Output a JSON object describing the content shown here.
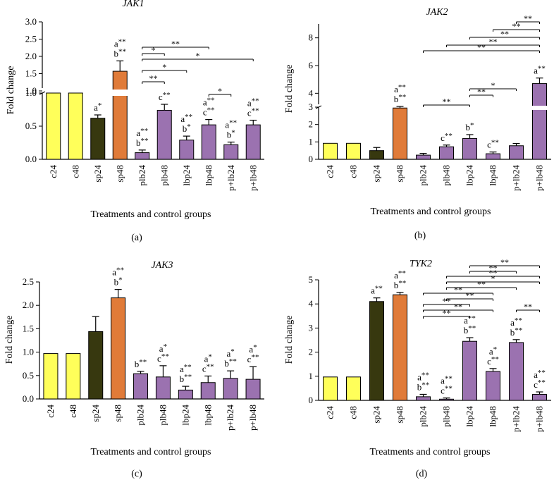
{
  "chart_data": [
    {
      "type": "bar",
      "panel_label": "(a)",
      "title": "JAK1",
      "xlabel": "Treatments and control groups",
      "ylabel": "Fold change",
      "y_break": {
        "lower": [
          0,
          1.0
        ],
        "upper": [
          1.0,
          3.0
        ]
      },
      "yticks_lower": [
        "0.0",
        "0.5",
        "1.0"
      ],
      "yticks_upper": [
        "1.0",
        "1.5",
        "2.0",
        "2.5",
        "3.0"
      ],
      "categories": [
        "c24",
        "c48",
        "sp24",
        "sp48",
        "plb24",
        "plb48",
        "lbp24",
        "lbp48",
        "p+lb24",
        "p+lb48"
      ],
      "values": [
        1.0,
        1.0,
        0.62,
        1.57,
        0.1,
        0.74,
        0.29,
        0.52,
        0.22,
        0.52
      ],
      "errors": [
        0,
        0,
        0.05,
        0.3,
        0.04,
        0.09,
        0.06,
        0.08,
        0.04,
        0.07
      ],
      "colors": [
        "#ffff5a",
        "#ffff5a",
        "#37380f",
        "#e07b39",
        "#9b72b0",
        "#9b72b0",
        "#9b72b0",
        "#9b72b0",
        "#9b72b0",
        "#9b72b0"
      ],
      "annotations": [
        "",
        "",
        "a*",
        "a**\nb**",
        "a**\nb**",
        "c**",
        "a**\nb*",
        "a**\nc**",
        "a**\nb*",
        "a**\nc**"
      ],
      "significance": [
        {
          "from": 4,
          "to": 7,
          "label": "**"
        },
        {
          "from": 4,
          "to": 5,
          "label": "*"
        },
        {
          "from": 4,
          "to": 9,
          "label": "*"
        },
        {
          "from": 4,
          "to": 6,
          "label": "*"
        },
        {
          "from": 4,
          "to": 5,
          "label": "**"
        },
        {
          "from": 7,
          "to": 8,
          "label": "*"
        }
      ]
    },
    {
      "type": "bar",
      "panel_label": "(b)",
      "title": "JAK2",
      "xlabel": "Treatments and control groups",
      "ylabel": "Fold change",
      "y_break": {
        "lower": [
          0,
          3
        ],
        "upper": [
          3,
          9
        ]
      },
      "yticks_lower": [
        "0",
        "1",
        "2",
        "3"
      ],
      "yticks_upper": [
        "4",
        "6",
        "8"
      ],
      "categories": [
        "c24",
        "c48",
        "sp24",
        "sp48",
        "plb24",
        "plb48",
        "lbp24",
        "lbp48",
        "p+lb24",
        "p+lb48"
      ],
      "values": [
        0.92,
        0.92,
        0.5,
        2.95,
        0.24,
        0.72,
        1.2,
        0.32,
        0.78,
        4.7
      ],
      "errors": [
        0,
        0,
        0.18,
        0.1,
        0.1,
        0.1,
        0.22,
        0.1,
        0.13,
        0.4
      ],
      "colors": [
        "#ffff5a",
        "#ffff5a",
        "#37380f",
        "#e07b39",
        "#9b72b0",
        "#9b72b0",
        "#9b72b0",
        "#9b72b0",
        "#9b72b0",
        "#9b72b0"
      ],
      "annotations": [
        "",
        "",
        "",
        "a**\nb**",
        "",
        "c**",
        "b*",
        "c**",
        "",
        "a**"
      ],
      "significance": [
        {
          "from": 8,
          "to": 9,
          "label": "**"
        },
        {
          "from": 7,
          "to": 9,
          "label": "**"
        },
        {
          "from": 6,
          "to": 9,
          "label": "**"
        },
        {
          "from": 5,
          "to": 9,
          "label": "**"
        },
        {
          "from": 4,
          "to": 9,
          "label": "**"
        },
        {
          "from": 6,
          "to": 8,
          "label": "*"
        },
        {
          "from": 6,
          "to": 7,
          "label": "**"
        },
        {
          "from": 4,
          "to": 6,
          "label": "**"
        }
      ]
    },
    {
      "type": "bar",
      "panel_label": "(c)",
      "title": "JAK3",
      "xlabel": "Treatments and control groups",
      "ylabel": "Fold change",
      "ylim": [
        0,
        2.5
      ],
      "yticks": [
        "0.0",
        "0.5",
        "1.0",
        "1.5",
        "2.0",
        "2.5"
      ],
      "categories": [
        "c24",
        "c48",
        "sp24",
        "sp48",
        "plb24",
        "plb48",
        "lbp24",
        "lbp48",
        "p+lb24",
        "p+lb48"
      ],
      "values": [
        0.97,
        0.97,
        1.44,
        2.16,
        0.54,
        0.47,
        0.19,
        0.35,
        0.44,
        0.42
      ],
      "errors": [
        0,
        0,
        0.32,
        0.18,
        0.05,
        0.24,
        0.08,
        0.14,
        0.16,
        0.27
      ],
      "colors": [
        "#ffff5a",
        "#ffff5a",
        "#37380f",
        "#e07b39",
        "#9b72b0",
        "#9b72b0",
        "#9b72b0",
        "#9b72b0",
        "#9b72b0",
        "#9b72b0"
      ],
      "annotations": [
        "",
        "",
        "",
        "a**\nb*",
        "b**",
        "a*\nc**",
        "a**\nb**",
        "a*\nc**",
        "a*\nb**",
        "a*\nc**"
      ],
      "significance": []
    },
    {
      "type": "bar",
      "panel_label": "(d)",
      "title": "TYK2",
      "xlabel": "Treatments and control groups",
      "ylabel": "Fold change",
      "ylim": [
        0,
        5
      ],
      "yticks": [
        "0",
        "1",
        "2",
        "3",
        "4",
        "5"
      ],
      "categories": [
        "c24",
        "c48",
        "sp24",
        "sp48",
        "plb24",
        "plb48",
        "lbp24",
        "lbp48",
        "p+lb24",
        "p+lb48"
      ],
      "values": [
        0.97,
        0.97,
        4.1,
        4.38,
        0.15,
        0.05,
        2.45,
        1.2,
        2.4,
        0.25
      ],
      "errors": [
        0,
        0,
        0.15,
        0.1,
        0.1,
        0.05,
        0.15,
        0.12,
        0.12,
        0.1
      ],
      "colors": [
        "#ffff5a",
        "#ffff5a",
        "#37380f",
        "#e07b39",
        "#9b72b0",
        "#9b72b0",
        "#9b72b0",
        "#9b72b0",
        "#9b72b0",
        "#9b72b0"
      ],
      "annotations": [
        "",
        "",
        "a**",
        "a**\nb**",
        "a**\nb**",
        "a**\nc**",
        "a**\nb**",
        "a*\nc**",
        "a**\nb**",
        "a**\nc**"
      ],
      "significance": [
        {
          "from": 6,
          "to": 9,
          "label": "**"
        },
        {
          "from": 6,
          "to": 8,
          "label": "**"
        },
        {
          "from": 5,
          "to": 9,
          "label": "**"
        },
        {
          "from": 5,
          "to": 9,
          "label": "*"
        },
        {
          "from": 5,
          "to": 8,
          "label": "**"
        },
        {
          "from": 4,
          "to": 7,
          "label": "**"
        },
        {
          "from": 5,
          "to": 7,
          "label": "**"
        },
        {
          "from": 4,
          "to": 6,
          "label": "**"
        },
        {
          "from": 4,
          "to": 7,
          "label": "**"
        },
        {
          "from": 4,
          "to": 6,
          "label": "**"
        },
        {
          "from": 8,
          "to": 9,
          "label": "**"
        }
      ]
    }
  ]
}
